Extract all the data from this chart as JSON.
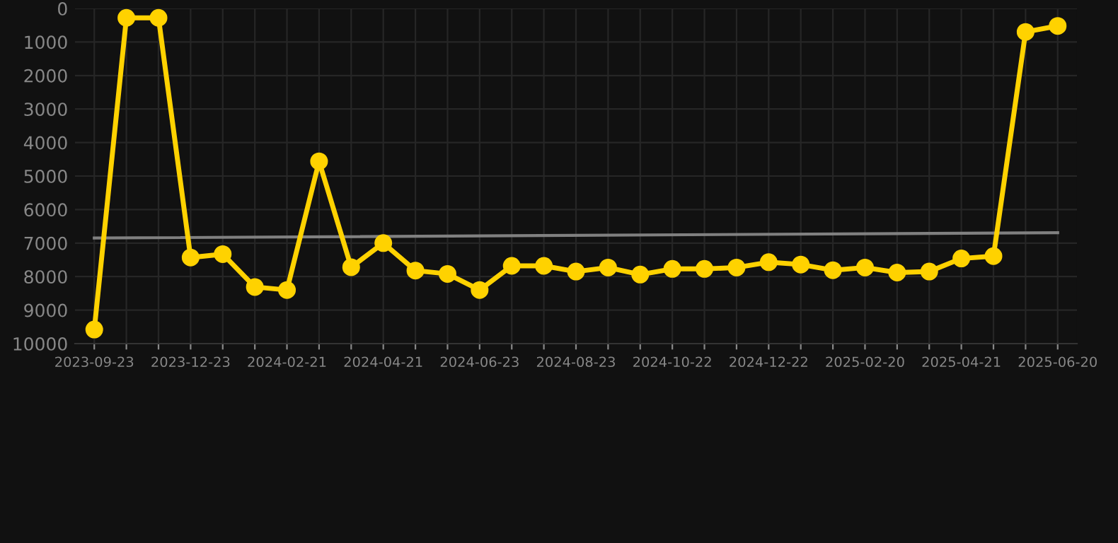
{
  "chart_data": {
    "type": "line",
    "categories": [
      "2023-09-23",
      null,
      null,
      "2023-12-23",
      null,
      null,
      "2024-02-21",
      null,
      null,
      "2024-04-21",
      null,
      null,
      "2024-06-23",
      null,
      null,
      "2024-08-23",
      null,
      null,
      "2024-10-22",
      null,
      null,
      "2024-12-22",
      null,
      null,
      "2025-02-20",
      null,
      null,
      "2025-04-21",
      null,
      null,
      "2025-06-20"
    ],
    "series": [
      {
        "color": "#ffd200",
        "marker": "circle",
        "values": [
          9580,
          280,
          280,
          7430,
          7330,
          8310,
          8400,
          4560,
          7720,
          7000,
          7820,
          7920,
          8400,
          7680,
          7680,
          7850,
          7730,
          7940,
          7770,
          7770,
          7730,
          7570,
          7640,
          7810,
          7730,
          7880,
          7850,
          7460,
          7390,
          700,
          520
        ]
      },
      {
        "color": "#808080",
        "marker": "none",
        "values": [
          6850,
          null,
          null,
          null,
          null,
          null,
          null,
          null,
          null,
          null,
          null,
          null,
          null,
          null,
          null,
          null,
          null,
          null,
          null,
          null,
          null,
          null,
          null,
          null,
          null,
          null,
          null,
          null,
          null,
          null,
          6690
        ]
      }
    ],
    "ylim": [
      10000,
      0
    ],
    "yticks": [
      0,
      1000,
      2000,
      3000,
      4000,
      5000,
      6000,
      7000,
      8000,
      9000,
      10000
    ],
    "grid": true
  }
}
